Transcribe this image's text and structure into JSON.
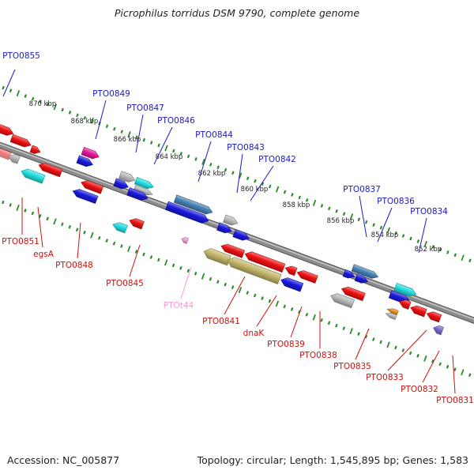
{
  "title": "Picrophilus torridus DSM 9790, complete genome",
  "footer": {
    "accession": "Accession: NC_005877",
    "summary": "Topology: circular; Length: 1,545,895 bp; Genes: 1,583"
  },
  "colors": {
    "backbone": "#8c8c8c",
    "tick_track": "#2d8a2d",
    "forward_label": "#1a1acc",
    "reverse_label": "#cc1111",
    "rna_label": "#f29ad0",
    "red_gene": "#ee1111",
    "blue_gene": "#1a1add",
    "cyan_gene": "#22dede",
    "gray_gene": "#b9b9b9",
    "steel_gene": "#4682b4",
    "magenta_gene": "#e5179a",
    "olive_gene": "#c2b667",
    "orange_gene": "#f08a1a",
    "purple_gene": "#7a6ccc",
    "pink_gene": "#f4a0d8"
  },
  "kbp_markers": [
    "870 kbp",
    "868 kbp",
    "866 kbp",
    "864 kbp",
    "862 kbp",
    "860 kbp",
    "858 kbp",
    "856 kbp",
    "854 kbp",
    "852 kbp"
  ],
  "forward_labels": [
    "PTO0855",
    "PTO0849",
    "PTO0847",
    "PTO0846",
    "PTO0844",
    "PTO0843",
    "PTO0842",
    "PTO0837",
    "PTO0836",
    "PTO0834"
  ],
  "reverse_labels": [
    "PTO0851",
    "egsA",
    "PTO0848",
    "PTO0845",
    "PTO0841",
    "dnaK",
    "PTO0839",
    "PTO0838",
    "PTO0835",
    "PTO0833",
    "PTO0832",
    "PTO0831"
  ],
  "rna_labels": [
    "PTOt44"
  ]
}
